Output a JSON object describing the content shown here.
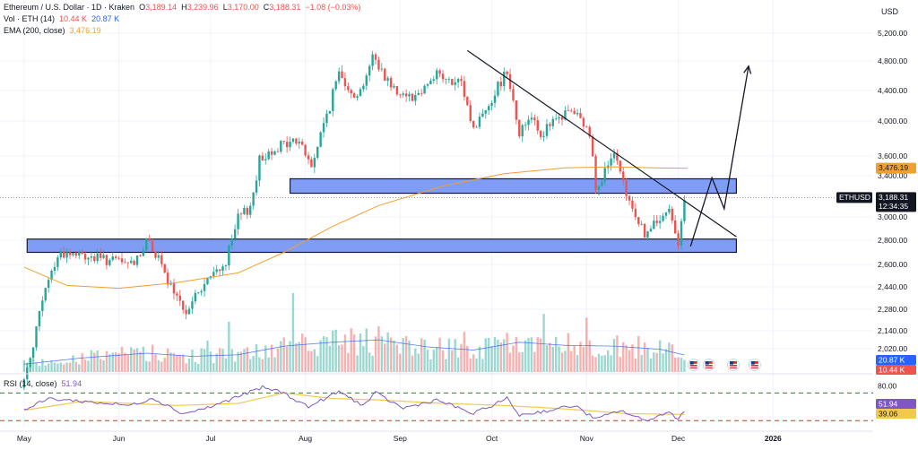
{
  "header": {
    "symbol_title": "Ethereum / U.S. Dollar · 1D · Kraken",
    "ohlc": [
      {
        "k": "O",
        "v": "3,189.14"
      },
      {
        "k": "H",
        "v": "3,239.96"
      },
      {
        "k": "L",
        "v": "3,170.00"
      },
      {
        "k": "C",
        "v": "3,188.31"
      }
    ],
    "change": "−1.08 (−0.03%)",
    "vol_label": "Vol · ETH (14)",
    "vol_value": "10.44 K",
    "vol_ma_value": "20.87 K",
    "ema_label": "EMA (200, close)",
    "ema_value": "3,476.19",
    "currency": "USD"
  },
  "rsi_legend": {
    "label": "RSI (14, close)",
    "value": "51.94"
  },
  "badges": {
    "ema": "3,476.19",
    "symbol": "ETHUSD",
    "price": "3,188.31",
    "countdown": "12:34:35",
    "vol_ma": "20.87 K",
    "vol": "10.44 K",
    "rsi": "51.94",
    "rsi_ma": "39.06"
  },
  "colors": {
    "up": "#26a69a",
    "down": "#ef5350",
    "ema": "#f0a030",
    "zone_fill": "#6a8cf5",
    "rsi": "#7e57c2",
    "rsi_ma": "#f2c94c",
    "vol_ma": "#2962ff",
    "rsi_upper": "#2e7d32",
    "rsi_lower": "#d32f2f"
  },
  "chart_data": {
    "type": "candlestick",
    "price_axis_ticks": [
      5200,
      4800,
      4400,
      4000,
      3600,
      3400,
      3000,
      2800,
      2600,
      2440,
      2280,
      2140,
      2020
    ],
    "price_tick_labels": [
      "5,200.00",
      "4,800.00",
      "4,400.00",
      "4,000.00",
      "3,600.00",
      "3,400.00",
      "3,000.00",
      "2,800.00",
      "2,600.00",
      "2,440.00",
      "2,280.00",
      "2,140.00",
      "2,020.00"
    ],
    "time_ticks": [
      "May",
      "Jun",
      "Jul",
      "Aug",
      "Sep",
      "Oct",
      "Nov",
      "Dec",
      "2026"
    ],
    "price_anchors": [
      [
        "2025-05-01",
        1800
      ],
      [
        "2025-05-09",
        2500
      ],
      [
        "2025-05-13",
        2700
      ],
      [
        "2025-05-25",
        2650
      ],
      [
        "2025-06-05",
        2600
      ],
      [
        "2025-06-11",
        2800
      ],
      [
        "2025-06-16",
        2520
      ],
      [
        "2025-06-22",
        2260
      ],
      [
        "2025-06-30",
        2480
      ],
      [
        "2025-07-06",
        2620
      ],
      [
        "2025-07-10",
        2980
      ],
      [
        "2025-07-14",
        3100
      ],
      [
        "2025-07-17",
        3550
      ],
      [
        "2025-07-22",
        3700
      ],
      [
        "2025-07-30",
        3780
      ],
      [
        "2025-08-03",
        3480
      ],
      [
        "2025-08-09",
        4200
      ],
      [
        "2025-08-12",
        4650
      ],
      [
        "2025-08-18",
        4300
      ],
      [
        "2025-08-23",
        4850
      ],
      [
        "2025-08-30",
        4420
      ],
      [
        "2025-09-06",
        4320
      ],
      [
        "2025-09-13",
        4650
      ],
      [
        "2025-09-17",
        4500
      ],
      [
        "2025-09-21",
        4480
      ],
      [
        "2025-09-25",
        3900
      ],
      [
        "2025-10-01",
        4300
      ],
      [
        "2025-10-06",
        4690
      ],
      [
        "2025-10-10",
        3850
      ],
      [
        "2025-10-14",
        4100
      ],
      [
        "2025-10-17",
        3850
      ],
      [
        "2025-10-27",
        4150
      ],
      [
        "2025-11-02",
        3850
      ],
      [
        "2025-11-04",
        3300
      ],
      [
        "2025-11-10",
        3600
      ],
      [
        "2025-11-14",
        3200
      ],
      [
        "2025-11-20",
        2850
      ],
      [
        "2025-11-24",
        2950
      ],
      [
        "2025-11-28",
        3050
      ],
      [
        "2025-12-01",
        2800
      ],
      [
        "2025-12-03",
        3190
      ]
    ],
    "ema_200": [
      [
        "2025-05-01",
        2580
      ],
      [
        "2025-05-15",
        2450
      ],
      [
        "2025-06-01",
        2430
      ],
      [
        "2025-06-20",
        2470
      ],
      [
        "2025-07-10",
        2540
      ],
      [
        "2025-07-25",
        2700
      ],
      [
        "2025-08-10",
        2920
      ],
      [
        "2025-08-25",
        3110
      ],
      [
        "2025-09-15",
        3300
      ],
      [
        "2025-10-05",
        3420
      ],
      [
        "2025-10-25",
        3480
      ],
      [
        "2025-11-10",
        3490
      ],
      [
        "2025-11-25",
        3478
      ],
      [
        "2025-12-04",
        3476.19
      ]
    ],
    "zones": [
      {
        "from": "2025-07-27",
        "to": "2025-12-20",
        "low": 3230,
        "high": 3370
      },
      {
        "from": "2025-05-02",
        "to": "2025-12-20",
        "low": 2700,
        "high": 2810
      }
    ],
    "trendline": [
      [
        "2025-09-23",
        4950
      ],
      [
        "2025-12-20",
        2830
      ]
    ],
    "projection": [
      [
        "2025-12-05",
        2750
      ],
      [
        "2025-12-12",
        3380
      ],
      [
        "2025-12-16",
        3080
      ],
      [
        "2025-12-24",
        4730
      ]
    ],
    "volume_scale_max": 120,
    "volume_ma_anchors": [
      [
        "2025-05-01",
        10
      ],
      [
        "2025-05-20",
        18
      ],
      [
        "2025-06-10",
        24
      ],
      [
        "2025-06-25",
        20
      ],
      [
        "2025-07-10",
        22
      ],
      [
        "2025-07-25",
        33
      ],
      [
        "2025-08-10",
        38
      ],
      [
        "2025-08-25",
        41
      ],
      [
        "2025-09-10",
        32
      ],
      [
        "2025-09-25",
        28
      ],
      [
        "2025-10-10",
        38
      ],
      [
        "2025-10-25",
        34
      ],
      [
        "2025-11-10",
        33
      ],
      [
        "2025-11-25",
        29
      ],
      [
        "2025-12-04",
        20.87
      ]
    ],
    "rsi_levels": {
      "upper": 70,
      "lower": 30,
      "axis_label": "80.00"
    },
    "rsi_anchors": [
      [
        "2025-05-01",
        45
      ],
      [
        "2025-05-09",
        62
      ],
      [
        "2025-05-20",
        58
      ],
      [
        "2025-06-05",
        52
      ],
      [
        "2025-06-12",
        63
      ],
      [
        "2025-06-22",
        40
      ],
      [
        "2025-07-01",
        50
      ],
      [
        "2025-07-10",
        65
      ],
      [
        "2025-07-18",
        78
      ],
      [
        "2025-07-24",
        72
      ],
      [
        "2025-08-02",
        50
      ],
      [
        "2025-08-12",
        72
      ],
      [
        "2025-08-20",
        52
      ],
      [
        "2025-08-24",
        70
      ],
      [
        "2025-09-02",
        48
      ],
      [
        "2025-09-13",
        60
      ],
      [
        "2025-09-25",
        40
      ],
      [
        "2025-10-06",
        62
      ],
      [
        "2025-10-10",
        38
      ],
      [
        "2025-10-20",
        45
      ],
      [
        "2025-10-28",
        52
      ],
      [
        "2025-11-04",
        32
      ],
      [
        "2025-11-12",
        45
      ],
      [
        "2025-11-20",
        30
      ],
      [
        "2025-11-28",
        42
      ],
      [
        "2025-12-01",
        33
      ],
      [
        "2025-12-04",
        51.94
      ]
    ],
    "rsi_ma_anchors": [
      [
        "2025-05-01",
        45
      ],
      [
        "2025-05-20",
        58
      ],
      [
        "2025-06-20",
        52
      ],
      [
        "2025-07-10",
        55
      ],
      [
        "2025-07-25",
        70
      ],
      [
        "2025-08-10",
        62
      ],
      [
        "2025-08-25",
        60
      ],
      [
        "2025-09-15",
        55
      ],
      [
        "2025-10-05",
        52
      ],
      [
        "2025-10-25",
        47
      ],
      [
        "2025-11-15",
        40
      ],
      [
        "2025-12-04",
        39.06
      ]
    ]
  }
}
